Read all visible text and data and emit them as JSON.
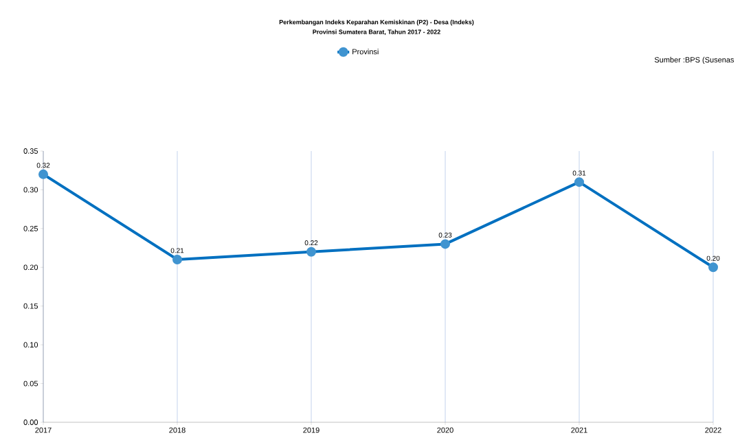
{
  "chart_data": {
    "type": "line",
    "title": "Perkembangan Indeks Keparahan Kemiskinan (P2) - Desa (Indeks)",
    "subtitle": "Provinsi Sumatera Barat, Tahun 2017 - 2022",
    "annotations": [
      "Sumber :BPS (Susenas"
    ],
    "categories": [
      "2017",
      "2018",
      "2019",
      "2020",
      "2021",
      "2022"
    ],
    "series": [
      {
        "name": "Provinsi",
        "color": "#0070c0",
        "values": [
          0.32,
          0.21,
          0.22,
          0.23,
          0.31,
          0.2
        ],
        "value_labels": [
          "0.32",
          "0.21",
          "0.22",
          "0.23",
          "0.31",
          "0.20"
        ]
      }
    ],
    "ylim": [
      0,
      0.35
    ],
    "yticks": [
      {
        "value": 0,
        "label": "0.00"
      },
      {
        "value": 0.05,
        "label": "0.05"
      },
      {
        "value": 0.1,
        "label": "0.10"
      },
      {
        "value": 0.15,
        "label": "0.15"
      },
      {
        "value": 0.2,
        "label": "0.20"
      },
      {
        "value": 0.25,
        "label": "0.25"
      },
      {
        "value": 0.3,
        "label": "0.30"
      },
      {
        "value": 0.35,
        "label": "0.35"
      }
    ],
    "grid": "x",
    "legend": "top",
    "marker": "circle",
    "line_style": "solid"
  }
}
